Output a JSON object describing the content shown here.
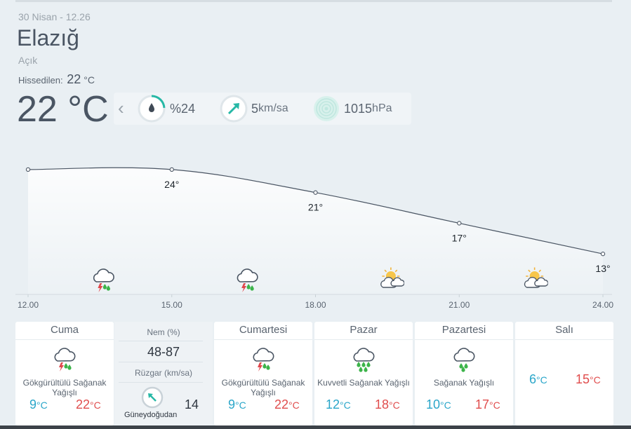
{
  "header": {
    "date_time": "30 Nisan - 12.26",
    "city": "Elazığ",
    "condition": "Açık",
    "feels_label": "Hissedilen:",
    "feels_value": "22",
    "feels_unit": "°C",
    "temperature": "22 °C"
  },
  "stats": {
    "humidity": "%24",
    "humidity_fraction": 0.24,
    "wind_value": "5",
    "wind_unit": "km/sa",
    "pressure_value": "1015",
    "pressure_unit": "hPa"
  },
  "chart_data": {
    "type": "line",
    "x": [
      "12.00",
      "15.00",
      "18.00",
      "21.00",
      "24.00"
    ],
    "y": [
      24,
      24,
      21,
      17,
      13
    ],
    "data_labels": [
      "",
      "24°",
      "21°",
      "17°",
      "13°"
    ],
    "ylim": [
      10,
      26
    ],
    "icons": [
      "storm-icon",
      "storm-icon",
      "partly-sunny-icon",
      "partly-sunny-icon"
    ]
  },
  "days": [
    {
      "name": "Cuma",
      "icon": "storm-icon",
      "desc": "Gökgürültülü Sağanak Yağışlı",
      "low": "9",
      "high": "22",
      "unit": "°C"
    },
    {
      "name": "Cumartesi",
      "icon": "storm-icon",
      "desc": "Gökgürültülü Sağanak Yağışlı",
      "low": "9",
      "high": "22",
      "unit": "°C"
    },
    {
      "name": "Pazar",
      "icon": "heavy-rain-icon",
      "desc": "Kuvvetli Sağanak Yağışlı",
      "low": "12",
      "high": "18",
      "unit": "°C"
    },
    {
      "name": "Pazartesi",
      "icon": "rain-icon",
      "desc": "Sağanak Yağışlı",
      "low": "10",
      "high": "17",
      "unit": "°C"
    },
    {
      "name": "Salı",
      "icon": "",
      "desc": "",
      "low": "6",
      "high": "15",
      "unit": "°C"
    }
  ],
  "detail": {
    "humidity_label": "Nem (%)",
    "humidity_value": "48-87",
    "wind_label": "Rüzgar (km/sa)",
    "wind_direction": "Güneydoğudan",
    "wind_speed": "14"
  },
  "colors": {
    "low_temp": "#2aa6c9",
    "high_temp": "#e04d4d",
    "accent": "#26b8a6"
  }
}
